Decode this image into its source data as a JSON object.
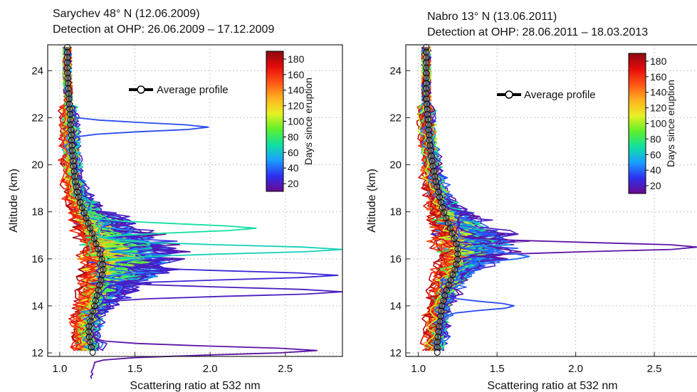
{
  "colorbar": {
    "label": "Days since eruption",
    "ticks": [
      20,
      40,
      60,
      80,
      100,
      120,
      140,
      160,
      180
    ],
    "range": [
      10,
      190
    ],
    "colors": [
      "#6a0a8e",
      "#2d2ff0",
      "#1aa0ff",
      "#10e0a0",
      "#5ff02a",
      "#e8f024",
      "#ffb020",
      "#ff5515",
      "#e60a0a",
      "#8a0a12"
    ]
  },
  "chart_data": [
    {
      "type": "line",
      "title_line1": "Sarychev 48° N (12.06.2009)",
      "title_line2": "Detection at OHP:  26.06.2009 – 17.12.2009",
      "xlabel": "Scattering ratio at 532 nm",
      "ylabel": "Altitude (km)",
      "xlim": [
        0.92,
        2.88
      ],
      "ylim": [
        11.85,
        25.1
      ],
      "xticks": [
        "1.0",
        "1.5",
        "2.0",
        "2.5"
      ],
      "xtick_values": [
        1.0,
        1.5,
        2.0,
        2.5
      ],
      "yticks": [
        "12",
        "14",
        "16",
        "18",
        "20",
        "22",
        "24"
      ],
      "ytick_values": [
        12,
        14,
        16,
        18,
        20,
        22,
        24
      ],
      "grid": true,
      "legend_label": "Average profile",
      "legend_position": "top-center",
      "average_profile": {
        "altitude": [
          25.0,
          24.0,
          23.0,
          22.0,
          21.0,
          20.0,
          19.0,
          18.5,
          18.0,
          17.5,
          17.0,
          16.5,
          16.0,
          15.5,
          15.0,
          14.5,
          14.0,
          13.5,
          13.0,
          12.5,
          12.0
        ],
        "ratio": [
          1.05,
          1.05,
          1.06,
          1.07,
          1.08,
          1.09,
          1.11,
          1.13,
          1.16,
          1.19,
          1.22,
          1.25,
          1.28,
          1.29,
          1.27,
          1.25,
          1.23,
          1.21,
          1.19,
          1.2,
          1.22
        ]
      },
      "notable_peaks": [
        {
          "altitude": 21.6,
          "ratio": 2.0,
          "days": 35
        },
        {
          "altitude": 17.3,
          "ratio": 2.3,
          "days": 70
        },
        {
          "altitude": 16.4,
          "ratio": 2.9,
          "days": 65
        },
        {
          "altitude": 15.3,
          "ratio": 2.85,
          "days": 25
        },
        {
          "altitude": 14.6,
          "ratio": 2.9,
          "days": 20
        },
        {
          "altitude": 12.1,
          "ratio": 2.7,
          "days": 15
        }
      ]
    },
    {
      "type": "line",
      "title_line1": "Nabro 13° N (13.06.2011)",
      "title_line2": "Detection at OHP:  28.06.2011 – 18.03.2013",
      "xlabel": "Scattering ratio at 532 nm",
      "ylabel": "Altitude (km)",
      "xlim": [
        0.92,
        2.88
      ],
      "ylim": [
        11.85,
        25.1
      ],
      "xticks": [
        "1.0",
        "1.5",
        "2.0",
        "2.5"
      ],
      "xtick_values": [
        1.0,
        1.5,
        2.0,
        2.5
      ],
      "yticks": [
        "12",
        "14",
        "16",
        "18",
        "20",
        "22",
        "24"
      ],
      "ytick_values": [
        12,
        14,
        16,
        18,
        20,
        22,
        24
      ],
      "grid": true,
      "legend_label": "Average profile",
      "legend_position": "top-center",
      "average_profile": {
        "altitude": [
          25.0,
          24.0,
          23.0,
          22.0,
          21.0,
          20.0,
          19.0,
          18.0,
          17.5,
          17.0,
          16.5,
          16.0,
          15.5,
          15.0,
          14.5,
          14.0,
          13.5,
          13.0,
          12.5,
          12.0
        ],
        "ratio": [
          1.05,
          1.05,
          1.05,
          1.06,
          1.07,
          1.09,
          1.12,
          1.16,
          1.19,
          1.22,
          1.25,
          1.25,
          1.23,
          1.2,
          1.17,
          1.15,
          1.14,
          1.13,
          1.12,
          1.12
        ]
      },
      "notable_peaks": [
        {
          "altitude": 16.5,
          "ratio": 2.88,
          "days": 15
        },
        {
          "altitude": 16.1,
          "ratio": 1.7,
          "days": 40
        },
        {
          "altitude": 14.0,
          "ratio": 1.62,
          "days": 35
        }
      ]
    }
  ]
}
